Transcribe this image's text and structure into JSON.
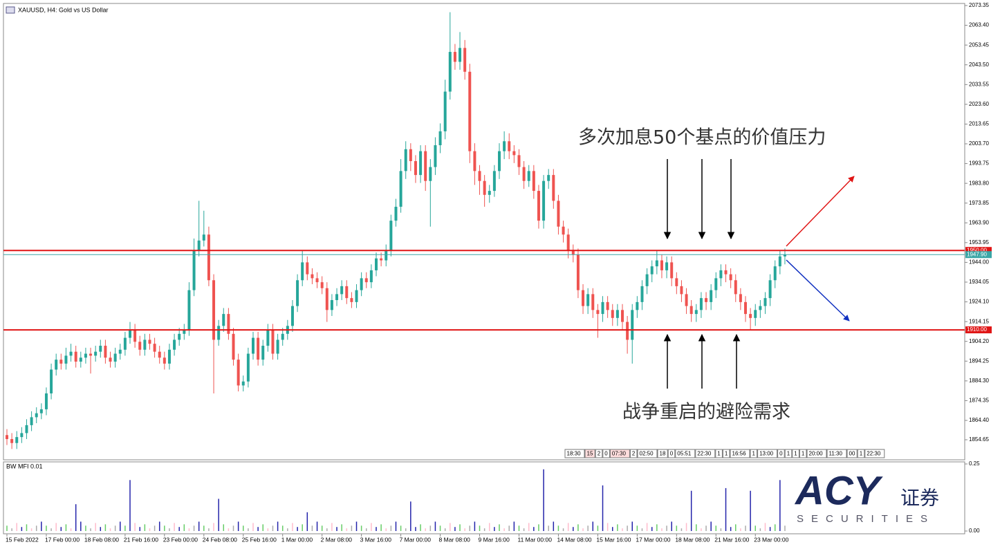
{
  "chart_data": {
    "type": "candlestick",
    "title": "XAUUSD, H4:  Gold vs US Dollar",
    "up_color": "#26a69a",
    "down_color": "#ef5350",
    "x_labels": [
      "15 Feb 2022",
      "17 Feb 00:00",
      "18 Feb 08:00",
      "21 Feb 16:00",
      "23 Feb 00:00",
      "24 Feb 08:00",
      "25 Feb 16:00",
      "1 Mar 00:00",
      "2 Mar 08:00",
      "3 Mar 16:00",
      "7 Mar 00:00",
      "8 Mar 08:00",
      "9 Mar 16:00",
      "11 Mar 00:00",
      "14 Mar 08:00",
      "15 Mar 16:00",
      "17 Mar 00:00",
      "18 Mar 08:00",
      "21 Mar 16:00",
      "23 Mar 00:00"
    ],
    "open": [
      1857,
      1855,
      1853,
      1856,
      1858,
      1862,
      1866,
      1868,
      1870,
      1878,
      1890,
      1895,
      1893,
      1897,
      1899,
      1894,
      1896,
      1898,
      1897,
      1899,
      1902,
      1896,
      1894,
      1898,
      1900,
      1906,
      1910,
      1904,
      1900,
      1905,
      1903,
      1899,
      1896,
      1893,
      1900,
      1905,
      1908,
      1910,
      1930,
      1950,
      1955,
      1958,
      1935,
      1905,
      1912,
      1918,
      1908,
      1895,
      1882,
      1884,
      1898,
      1906,
      1895,
      1902,
      1910,
      1898,
      1905,
      1908,
      1912,
      1922,
      1935,
      1944,
      1938,
      1936,
      1934,
      1931,
      1920,
      1925,
      1928,
      1932,
      1926,
      1924,
      1930,
      1936,
      1934,
      1940,
      1946,
      1945,
      1950,
      1965,
      1972,
      1990,
      2001,
      1995,
      1988,
      2000,
      1985,
      1992,
      2003,
      2010,
      2030,
      2050,
      2045,
      2052,
      2040,
      2000,
      1990,
      1985,
      1978,
      1980,
      1990,
      2000,
      2005,
      2000,
      1998,
      1992,
      1985,
      1990,
      1980,
      1965,
      1985,
      1988,
      1975,
      1962,
      1958,
      1950,
      1948,
      1930,
      1922,
      1928,
      1920,
      1918,
      1924,
      1920,
      1916,
      1920,
      1914,
      1905,
      1920,
      1924,
      1932,
      1938,
      1942,
      1945,
      1940,
      1944,
      1936,
      1932,
      1928,
      1922,
      1918,
      1920,
      1926,
      1924,
      1930,
      1936,
      1940,
      1938,
      1935,
      1928,
      1924,
      1918,
      1916,
      1920,
      1922,
      1926,
      1935,
      1942,
      1947
    ],
    "high": [
      1860,
      1858,
      1859,
      1861,
      1865,
      1869,
      1871,
      1873,
      1881,
      1893,
      1898,
      1898,
      1901,
      1903,
      1902,
      1899,
      1901,
      1901,
      1902,
      1905,
      1905,
      1899,
      1901,
      1903,
      1909,
      1914,
      1913,
      1907,
      1908,
      1908,
      1906,
      1902,
      1899,
      1903,
      1908,
      1911,
      1913,
      1934,
      1956,
      1975,
      1970,
      1962,
      1938,
      1915,
      1921,
      1921,
      1911,
      1898,
      1887,
      1901,
      1909,
      1909,
      1905,
      1913,
      1913,
      1908,
      1911,
      1915,
      1925,
      1938,
      1950,
      1947,
      1941,
      1939,
      1937,
      1934,
      1928,
      1931,
      1935,
      1935,
      1929,
      1933,
      1939,
      1939,
      1943,
      1949,
      1949,
      1953,
      1968,
      1976,
      1996,
      2005,
      2004,
      1998,
      2003,
      2003,
      1996,
      2007,
      2014,
      2036,
      2070,
      2054,
      2060,
      2056,
      2044,
      2004,
      1993,
      1988,
      1983,
      1993,
      2004,
      2010,
      2009,
      2003,
      2001,
      1995,
      1993,
      1993,
      1983,
      1988,
      1991,
      1991,
      1978,
      1965,
      1961,
      1953,
      1951,
      1933,
      1931,
      1931,
      1923,
      1927,
      1927,
      1923,
      1923,
      1923,
      1917,
      1923,
      1927,
      1935,
      1941,
      1945,
      1950,
      1948,
      1947,
      1947,
      1939,
      1935,
      1931,
      1925,
      1923,
      1929,
      1929,
      1933,
      1939,
      1943,
      1943,
      1941,
      1938,
      1931,
      1927,
      1921,
      1923,
      1925,
      1929,
      1938,
      1945,
      1950,
      1951
    ],
    "low": [
      1852,
      1850,
      1850,
      1853,
      1855,
      1859,
      1863,
      1865,
      1867,
      1875,
      1887,
      1890,
      1890,
      1894,
      1891,
      1891,
      1893,
      1888,
      1894,
      1896,
      1893,
      1891,
      1891,
      1895,
      1897,
      1903,
      1901,
      1897,
      1897,
      1900,
      1896,
      1893,
      1890,
      1890,
      1897,
      1902,
      1905,
      1907,
      1927,
      1947,
      1952,
      1932,
      1878,
      1902,
      1909,
      1905,
      1892,
      1879,
      1879,
      1881,
      1895,
      1892,
      1892,
      1899,
      1895,
      1895,
      1902,
      1905,
      1909,
      1919,
      1932,
      1935,
      1933,
      1931,
      1928,
      1914,
      1917,
      1922,
      1925,
      1923,
      1921,
      1921,
      1927,
      1931,
      1931,
      1937,
      1942,
      1942,
      1947,
      1962,
      1969,
      1986,
      1990,
      1984,
      1984,
      1980,
      1962,
      1988,
      1999,
      2006,
      2026,
      2041,
      2041,
      2036,
      1994,
      1983,
      1978,
      1972,
      1974,
      1977,
      1986,
      1996,
      1996,
      1994,
      1988,
      1981,
      1982,
      1976,
      1961,
      1961,
      1981,
      1971,
      1958,
      1954,
      1946,
      1944,
      1926,
      1918,
      1918,
      1916,
      1906,
      1914,
      1916,
      1912,
      1912,
      1910,
      1898,
      1893,
      1916,
      1920,
      1928,
      1934,
      1938,
      1936,
      1936,
      1932,
      1928,
      1924,
      1918,
      1914,
      1914,
      1916,
      1920,
      1920,
      1926,
      1932,
      1934,
      1931,
      1924,
      1920,
      1914,
      1910,
      1912,
      1916,
      1918,
      1922,
      1931,
      1938,
      1943
    ],
    "close": [
      1855,
      1853,
      1856,
      1858,
      1862,
      1866,
      1868,
      1870,
      1878,
      1890,
      1895,
      1893,
      1897,
      1899,
      1894,
      1896,
      1898,
      1897,
      1899,
      1902,
      1896,
      1894,
      1898,
      1900,
      1906,
      1910,
      1904,
      1900,
      1905,
      1903,
      1899,
      1896,
      1893,
      1900,
      1905,
      1908,
      1910,
      1930,
      1950,
      1955,
      1958,
      1935,
      1905,
      1912,
      1918,
      1908,
      1895,
      1882,
      1884,
      1898,
      1906,
      1895,
      1902,
      1910,
      1898,
      1905,
      1908,
      1912,
      1922,
      1935,
      1944,
      1938,
      1936,
      1934,
      1931,
      1920,
      1925,
      1928,
      1932,
      1926,
      1924,
      1930,
      1936,
      1934,
      1940,
      1946,
      1945,
      1950,
      1965,
      1972,
      1990,
      2001,
      1995,
      1988,
      2000,
      1985,
      1992,
      2003,
      2010,
      2030,
      2050,
      2045,
      2052,
      2040,
      2000,
      1990,
      1985,
      1978,
      1980,
      1990,
      2000,
      2005,
      2000,
      1998,
      1992,
      1985,
      1990,
      1980,
      1965,
      1985,
      1988,
      1975,
      1962,
      1958,
      1950,
      1948,
      1930,
      1922,
      1928,
      1920,
      1918,
      1924,
      1920,
      1916,
      1920,
      1914,
      1905,
      1920,
      1924,
      1932,
      1938,
      1942,
      1945,
      1940,
      1944,
      1936,
      1932,
      1928,
      1922,
      1918,
      1920,
      1926,
      1924,
      1930,
      1936,
      1940,
      1938,
      1935,
      1928,
      1924,
      1918,
      1916,
      1920,
      1922,
      1926,
      1935,
      1942,
      1947,
      1948
    ],
    "ylim": [
      1844.55,
      2074.4
    ],
    "yticks": [
      2073.35,
      {
        "value": 2063.4,
        "label": "2063.40"
      },
      2053.45,
      {
        "value": 2043.5,
        "label": "2043.50"
      },
      2033.55,
      {
        "value": 2023.6,
        "label": "2023.60"
      },
      2013.65,
      {
        "value": 2003.7,
        "label": "2003.70"
      },
      1993.75,
      {
        "value": 1983.8,
        "label": "1983.80"
      },
      1973.85,
      {
        "value": 1963.9,
        "label": "1963.90"
      },
      1953.95,
      {
        "value": 1944,
        "label": "1944.00"
      },
      1934.05,
      {
        "value": 1924.1,
        "label": "1924.10"
      },
      1914.15,
      {
        "value": 1904.2,
        "label": "1904.20"
      },
      1894.25,
      {
        "value": 1884.3,
        "label": "1884.30"
      },
      1874.35,
      {
        "value": 1864.4,
        "label": "1864.40"
      },
      1854.65
    ],
    "levels": [
      {
        "value": 1950,
        "label": "1950.00",
        "color": "#e01515"
      },
      {
        "value": 1910,
        "label": "1910.00",
        "color": "#e01515"
      },
      {
        "value": 1947.9,
        "label": "1947.90",
        "color": "#3aa6a6"
      }
    ],
    "annotations": [
      "多次加息50个基点的价值压力",
      "战争重启的避险需求"
    ],
    "time_markers": [
      "18:30",
      "15",
      "2",
      "0",
      "07:30",
      "2",
      "02:50",
      "18",
      "0",
      "05:51",
      "22:30",
      "1",
      "1",
      "16:56",
      "1",
      "13:00",
      "0",
      "1",
      "1",
      "1",
      "20:00",
      "11:30",
      "00",
      "1",
      "22:30"
    ],
    "indicator": {
      "title": "BW MFI 0.01",
      "ylim": [
        0,
        0.25
      ],
      "yticks": [
        {
          "value": 0.25,
          "label": "0.25"
        },
        {
          "value": 0,
          "label": "0.00"
        }
      ],
      "values": [
        0.02,
        0.01,
        0.03,
        0.015,
        0.025,
        0.01,
        0.02,
        0.035,
        0.02,
        0.01,
        0.03,
        0.015,
        0.025,
        0.01,
        0.1,
        0.035,
        0.02,
        0.01,
        0.03,
        0.015,
        0.025,
        0.01,
        0.02,
        0.035,
        0.02,
        0.19,
        0.03,
        0.015,
        0.025,
        0.01,
        0.02,
        0.035,
        0.02,
        0.01,
        0.03,
        0.015,
        0.025,
        0.01,
        0.02,
        0.035,
        0.02,
        0.01,
        0.03,
        0.12,
        0.025,
        0.01,
        0.02,
        0.035,
        0.02,
        0.01,
        0.03,
        0.015,
        0.025,
        0.01,
        0.02,
        0.035,
        0.02,
        0.01,
        0.03,
        0.015,
        0.025,
        0.07,
        0.02,
        0.035,
        0.02,
        0.01,
        0.03,
        0.015,
        0.025,
        0.01,
        0.02,
        0.035,
        0.02,
        0.01,
        0.03,
        0.015,
        0.025,
        0.01,
        0.02,
        0.035,
        0.02,
        0.01,
        0.11,
        0.015,
        0.025,
        0.01,
        0.02,
        0.035,
        0.02,
        0.01,
        0.03,
        0.015,
        0.025,
        0.01,
        0.02,
        0.035,
        0.02,
        0.01,
        0.03,
        0.015,
        0.025,
        0.01,
        0.02,
        0.035,
        0.02,
        0.01,
        0.03,
        0.015,
        0.025,
        0.23,
        0.02,
        0.035,
        0.02,
        0.01,
        0.03,
        0.015,
        0.025,
        0.01,
        0.02,
        0.035,
        0.02,
        0.17,
        0.03,
        0.015,
        0.025,
        0.01,
        0.02,
        0.035,
        0.02,
        0.01,
        0.03,
        0.015,
        0.025,
        0.01,
        0.02,
        0.035,
        0.02,
        0.01,
        0.03,
        0.15,
        0.025,
        0.01,
        0.02,
        0.035,
        0.02,
        0.01,
        0.16,
        0.015,
        0.025,
        0.01,
        0.02,
        0.15,
        0.02,
        0.01,
        0.03,
        0.015,
        0.025,
        0.19,
        0.02
      ],
      "colors": [
        "#6c6",
        "#aaa",
        "#fbc",
        "#22a",
        "#6c6",
        "#fbc",
        "#aaa",
        "#22a",
        "#6c6",
        "#aaa",
        "#fbc",
        "#22a",
        "#6c6",
        "#fbc",
        "#22a",
        "#22a",
        "#6c6",
        "#aaa",
        "#fbc",
        "#22a",
        "#6c6",
        "#fbc",
        "#aaa",
        "#22a",
        "#6c6",
        "#22a",
        "#fbc",
        "#22a",
        "#6c6",
        "#fbc",
        "#aaa",
        "#22a",
        "#6c6",
        "#aaa",
        "#fbc",
        "#22a",
        "#6c6",
        "#fbc",
        "#aaa",
        "#22a",
        "#6c6",
        "#aaa",
        "#fbc",
        "#22a",
        "#6c6",
        "#fbc",
        "#aaa",
        "#22a",
        "#6c6",
        "#aaa",
        "#fbc",
        "#22a",
        "#6c6",
        "#fbc",
        "#aaa",
        "#22a",
        "#6c6",
        "#aaa",
        "#fbc",
        "#22a",
        "#6c6",
        "#22a",
        "#aaa",
        "#22a",
        "#6c6",
        "#aaa",
        "#fbc",
        "#22a",
        "#6c6",
        "#fbc",
        "#aaa",
        "#22a",
        "#6c6",
        "#aaa",
        "#fbc",
        "#22a",
        "#6c6",
        "#fbc",
        "#aaa",
        "#22a",
        "#6c6",
        "#aaa",
        "#22a",
        "#22a",
        "#6c6",
        "#fbc",
        "#aaa",
        "#22a",
        "#6c6",
        "#aaa",
        "#fbc",
        "#22a",
        "#6c6",
        "#fbc",
        "#aaa",
        "#22a",
        "#6c6",
        "#aaa",
        "#fbc",
        "#22a",
        "#6c6",
        "#fbc",
        "#aaa",
        "#22a",
        "#6c6",
        "#aaa",
        "#fbc",
        "#22a",
        "#6c6",
        "#22a",
        "#aaa",
        "#22a",
        "#6c6",
        "#aaa",
        "#fbc",
        "#22a",
        "#6c6",
        "#fbc",
        "#aaa",
        "#22a",
        "#6c6",
        "#22a",
        "#fbc",
        "#22a",
        "#6c6",
        "#fbc",
        "#aaa",
        "#22a",
        "#6c6",
        "#aaa",
        "#fbc",
        "#22a",
        "#6c6",
        "#fbc",
        "#aaa",
        "#22a",
        "#6c6",
        "#aaa",
        "#fbc",
        "#22a",
        "#6c6",
        "#fbc",
        "#aaa",
        "#22a",
        "#6c6",
        "#aaa",
        "#22a",
        "#22a",
        "#6c6",
        "#fbc",
        "#aaa",
        "#22a",
        "#6c6",
        "#aaa",
        "#fbc",
        "#22a",
        "#6c6",
        "#22a",
        "#aaa"
      ]
    }
  },
  "logo": {
    "brand": "ACY",
    "cn": "证券",
    "sub": "SECURITIES"
  }
}
